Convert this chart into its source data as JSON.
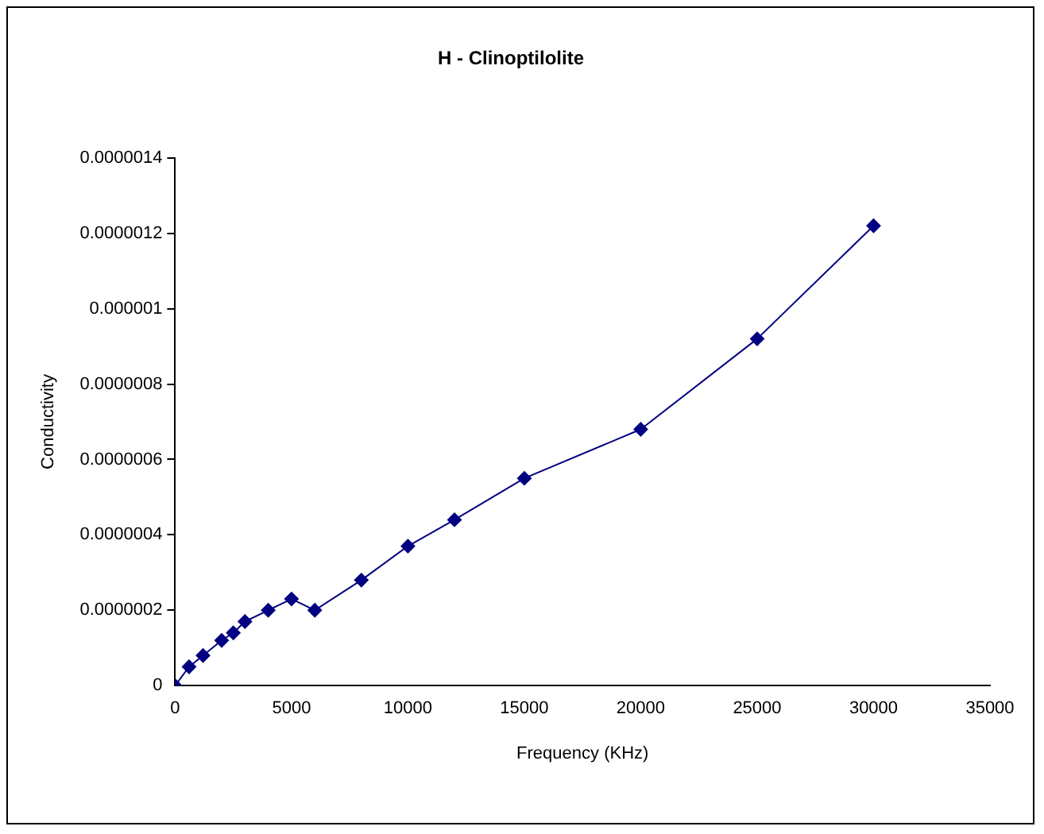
{
  "chart_data": {
    "type": "line",
    "title": "H - Clinoptilolite",
    "xlabel": "Frequency (KHz)",
    "ylabel": "Conductivity",
    "marker": "diamond",
    "grid": false,
    "legend": false,
    "xlim": [
      0,
      35000
    ],
    "xticks": [
      0,
      5000,
      10000,
      15000,
      20000,
      25000,
      30000,
      35000
    ],
    "ylim": [
      0,
      1.4e-06
    ],
    "yticks": [
      0,
      {
        "value": 2e-07,
        "label": "0.0000002"
      },
      {
        "value": 4e-07,
        "label": "0.0000004"
      },
      {
        "value": 6e-07,
        "label": "0.0000006"
      },
      {
        "value": 8e-07,
        "label": "0.0000008"
      },
      {
        "value": 1e-06,
        "label": "0.000001"
      },
      {
        "value": 1.2e-06,
        "label": "0.0000012"
      },
      {
        "value": 1.4e-06,
        "label": "0.0000014"
      }
    ],
    "series": [
      {
        "color": "#000080",
        "x": [
          0,
          600,
          1200,
          2000,
          2500,
          3000,
          4000,
          5000,
          6000,
          8000,
          10000,
          12000,
          15000,
          20000,
          25000,
          30000
        ],
        "values": [
          0,
          5e-08,
          8e-08,
          1.2e-07,
          1.4e-07,
          1.7e-07,
          2e-07,
          2.3e-07,
          2e-07,
          2.8e-07,
          3.7e-07,
          4.4e-07,
          5.5e-07,
          6.8e-07,
          9.2e-07,
          1.22e-06
        ]
      }
    ]
  }
}
